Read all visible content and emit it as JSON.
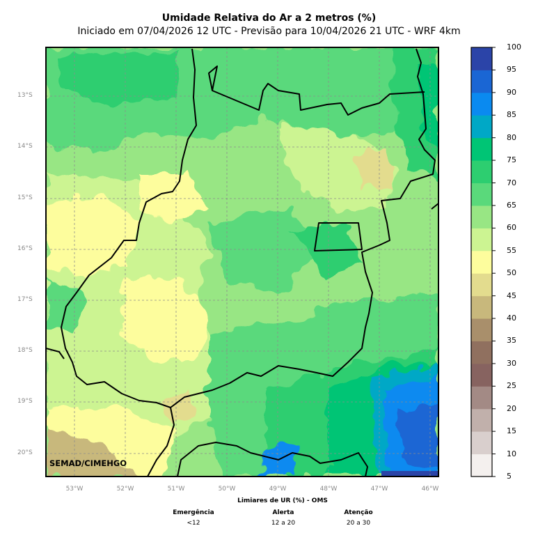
{
  "header": {
    "title": "Umidade Relativa do Ar a 2 metros (%)",
    "subtitle": "Iniciado em 07/04/2026 12 UTC - Previsão para 10/04/2026 21 UTC - WRF 4km"
  },
  "map": {
    "credit": "SEMAD/CIMEHGO",
    "lat_labels": [
      "13°S",
      "14°S",
      "15°S",
      "16°S",
      "17°S",
      "18°S",
      "19°S",
      "20°S"
    ],
    "lon_labels": [
      "53°W",
      "52°W",
      "51°W",
      "50°W",
      "49°W",
      "48°W",
      "47°W",
      "46°W"
    ]
  },
  "colorbar": {
    "ticks": [
      "100",
      "95",
      "90",
      "85",
      "80",
      "75",
      "70",
      "65",
      "60",
      "55",
      "50",
      "45",
      "40",
      "35",
      "30",
      "25",
      "20",
      "15",
      "10",
      "5"
    ],
    "colors": [
      "#f4f0ee",
      "#d9cfcd",
      "#c1b0ab",
      "#a38a85",
      "#876360",
      "#90705f",
      "#a98f6b",
      "#c8b87c",
      "#e3dc8e",
      "#fdfd9d",
      "#ccf492",
      "#98e684",
      "#5ad97b",
      "#2dce70",
      "#00c575",
      "#00a8c6",
      "#0a8af0",
      "#1a66d4",
      "#2b44a8"
    ]
  },
  "thresholds": {
    "title": "Limiares de UR (%) - OMS",
    "items": [
      {
        "label": "Emergência",
        "range": "<12"
      },
      {
        "label": "Alerta",
        "range": "12 a 20"
      },
      {
        "label": "Atenção",
        "range": "20 a 30"
      }
    ]
  }
}
